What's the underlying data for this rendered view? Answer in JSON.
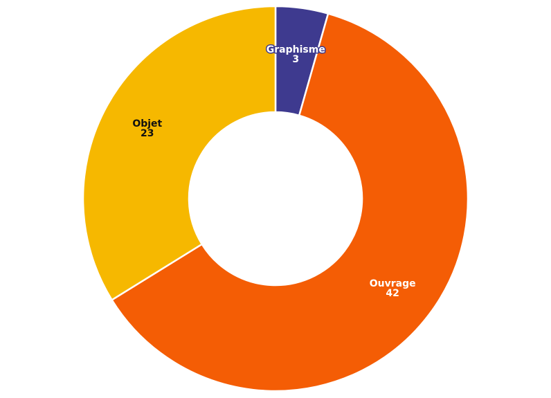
{
  "chart_data": {
    "type": "pie",
    "variant": "donut",
    "categories": [
      "Graphisme",
      "Ouvrage",
      "Objet"
    ],
    "values": [
      3,
      42,
      23
    ],
    "colors": [
      "#3e3a8f",
      "#f45d05",
      "#f6b800"
    ],
    "label_colors": [
      "#ffffff",
      "#ffffff",
      "#111111"
    ],
    "label_halo": [
      true,
      false,
      false
    ],
    "legend": "none"
  }
}
